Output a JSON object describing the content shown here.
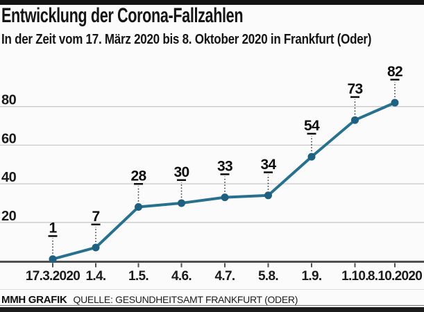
{
  "header": {
    "title": "Entwicklung der Corona-Fallzahlen",
    "subtitle": "In der Zeit vom 17. März 2020 bis 8. Oktober 2020 in Frankfurt (Oder)"
  },
  "footer": {
    "credit": "MMH GRAFIK",
    "source": "QUELLE: GESUNDHEITSAMT FRANKFURT (ODER)"
  },
  "chart_data": {
    "type": "line",
    "title": "Entwicklung der Corona-Fallzahlen",
    "subtitle": "In der Zeit vom 17. März 2020 bis 8. Oktober 2020 in Frankfurt (Oder)",
    "categories": [
      "17.3.2020",
      "1.4.",
      "1.5.",
      "4.6.",
      "4.7.",
      "5.8.",
      "1.9.",
      "1.10.",
      "8.10.2020"
    ],
    "values": [
      1,
      7,
      28,
      30,
      33,
      34,
      54,
      73,
      82
    ],
    "xlabel": "",
    "ylabel": "",
    "y_ticks": [
      20,
      40,
      60,
      80
    ],
    "ylim": [
      0,
      90
    ],
    "grid": "horizontal",
    "legend_position": "none",
    "data_labels": true,
    "colors": {
      "line": "#27718f",
      "point": "#1f6080",
      "gridline": "#c9c9c9",
      "axis": "#4f4f4f",
      "label_text": "#0d0d0d"
    }
  }
}
